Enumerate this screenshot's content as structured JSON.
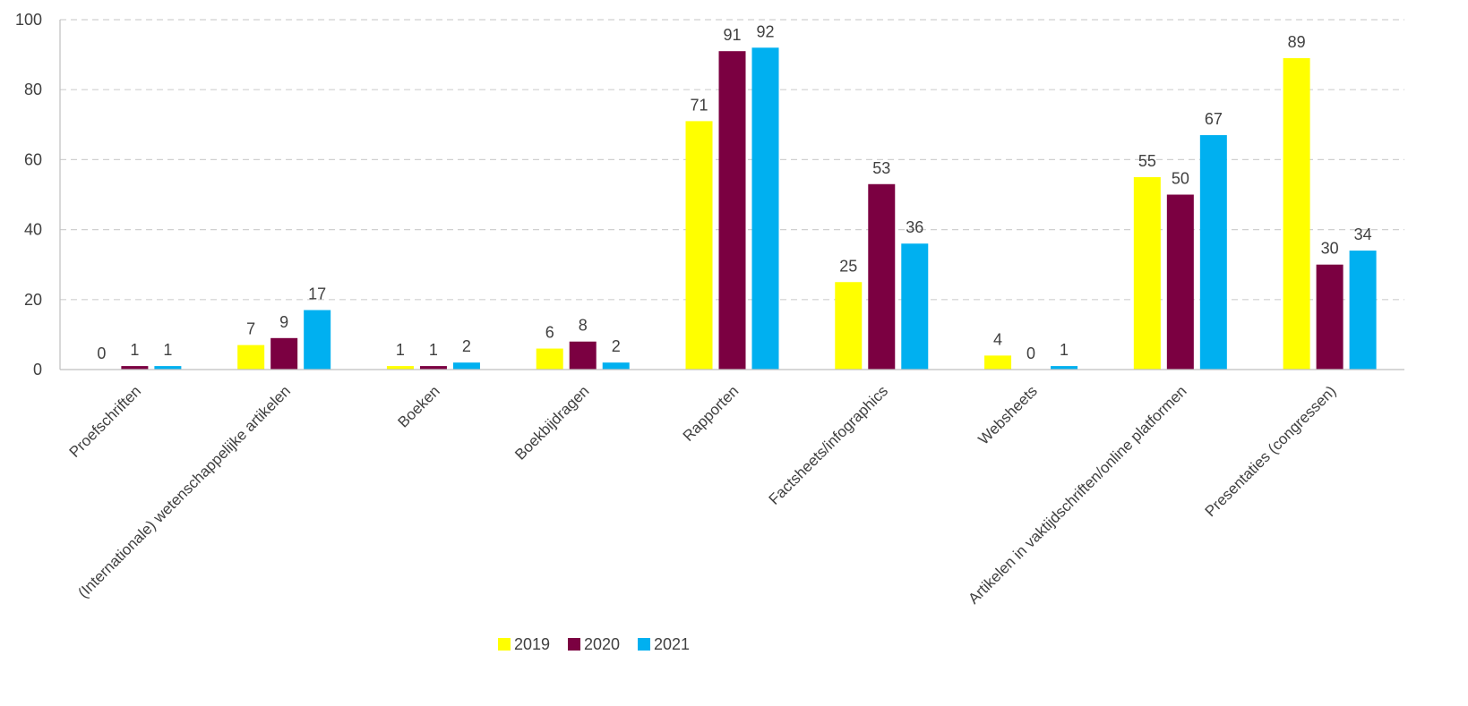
{
  "chart_data": {
    "type": "bar",
    "categories": [
      "Proefschriften",
      "(Internationale) wetenschappelijke artikelen",
      "Boeken",
      "Boekbijdragen",
      "Rapporten",
      "Factsheets/infographics",
      "Websheets",
      "Artikelen in vaktijdschriften/online platformen",
      "Presentaties (congressen)"
    ],
    "series": [
      {
        "name": "2019",
        "color": "#FFFF00",
        "values": [
          0,
          7,
          1,
          6,
          71,
          25,
          4,
          55,
          89
        ]
      },
      {
        "name": "2020",
        "color": "#7B0041",
        "values": [
          1,
          9,
          1,
          8,
          91,
          53,
          0,
          50,
          30
        ]
      },
      {
        "name": "2021",
        "color": "#00B0F0",
        "values": [
          1,
          17,
          2,
          2,
          92,
          36,
          1,
          67,
          34
        ]
      }
    ],
    "ylim": [
      0,
      100
    ],
    "yticks": [
      0,
      20,
      40,
      60,
      80,
      100
    ],
    "grid": true,
    "legend_position": "bottom",
    "data_labels": true
  }
}
